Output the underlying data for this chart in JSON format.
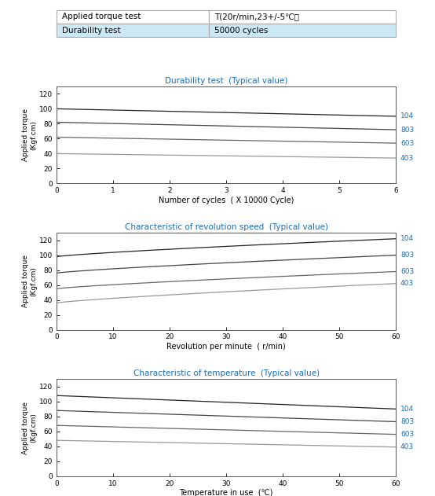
{
  "table": {
    "rows": [
      [
        "Applied torque test",
        "T(20r/min,23+/-5℃）"
      ],
      [
        "Durability test",
        "50000 cycles"
      ]
    ]
  },
  "chart1": {
    "title": "Durability test  (Typical value)",
    "xlabel": "Number of cycles  ( X 10000 Cycle)",
    "ylabel": "Applied torque\n(Kgf.cm)",
    "xlim": [
      0,
      6
    ],
    "ylim": [
      0,
      130
    ],
    "xticks": [
      0,
      1,
      2,
      3,
      4,
      5,
      6
    ],
    "yticks": [
      0,
      20,
      40,
      60,
      80,
      100,
      120
    ],
    "series": [
      {
        "label": "104",
        "y0": 100,
        "y1": 90,
        "color": "#222222"
      },
      {
        "label": "803",
        "y0": 82,
        "y1": 72,
        "color": "#444444"
      },
      {
        "label": "603",
        "y0": 62,
        "y1": 54,
        "color": "#666666"
      },
      {
        "label": "403",
        "y0": 40,
        "y1": 34,
        "color": "#999999"
      }
    ]
  },
  "chart2": {
    "title": "Characteristic of revolution speed  (Typical value)",
    "xlabel": "Revolution per minute  ( r/min)",
    "ylabel": "Applied torque\n(Kgf.cm)",
    "xlim": [
      0,
      60
    ],
    "ylim": [
      0,
      130
    ],
    "xticks": [
      0,
      10,
      20,
      30,
      40,
      50,
      60
    ],
    "yticks": [
      0,
      20,
      40,
      60,
      80,
      100,
      120
    ],
    "series": [
      {
        "label": "104",
        "y0": 98,
        "y1": 122,
        "color": "#222222"
      },
      {
        "label": "803",
        "y0": 76,
        "y1": 100,
        "color": "#444444"
      },
      {
        "label": "603",
        "y0": 55,
        "y1": 78,
        "color": "#666666"
      },
      {
        "label": "403",
        "y0": 36,
        "y1": 62,
        "color": "#999999"
      }
    ]
  },
  "chart3": {
    "title": "Characteristic of temperature  (Typical value)",
    "xlabel": "Temperature in use  (℃)",
    "ylabel": "Applied torque\n(Kgf.cm)",
    "xlim": [
      0,
      60
    ],
    "ylim": [
      0,
      130
    ],
    "xticks": [
      0,
      10,
      20,
      30,
      40,
      50,
      60
    ],
    "yticks": [
      0,
      20,
      40,
      60,
      80,
      100,
      120
    ],
    "series": [
      {
        "label": "104",
        "y0": 108,
        "y1": 90,
        "color": "#222222"
      },
      {
        "label": "803",
        "y0": 88,
        "y1": 73,
        "color": "#444444"
      },
      {
        "label": "603",
        "y0": 68,
        "y1": 56,
        "color": "#666666"
      },
      {
        "label": "403",
        "y0": 48,
        "y1": 39,
        "color": "#999999"
      }
    ]
  },
  "label_color": "#1a6eb5",
  "title_color": "#000000",
  "bg_color": "#ffffff"
}
